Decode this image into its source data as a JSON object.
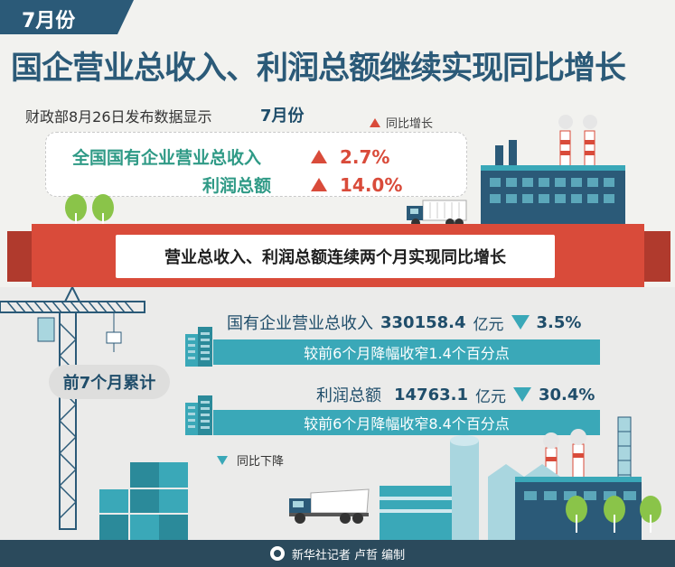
{
  "header": {
    "month_tab": "7月份",
    "title": "国企营业总收入、利润总额继续实现同比增长"
  },
  "summary": {
    "source_text": "财政部8月26日发布数据显示",
    "month": "7月份",
    "legend_up_label": "同比增长",
    "items": [
      {
        "label": "全国国有企业营业总收入",
        "change": "2.7%"
      },
      {
        "label": "利润总额",
        "change": "14.0%"
      }
    ]
  },
  "banner": {
    "text": "营业总收入、利润总额连续两个月实现同比增长"
  },
  "cumulative": {
    "label": "前7个月累计",
    "metrics": [
      {
        "label": "国有企业营业总收入",
        "value": "330158.4",
        "unit": "亿元",
        "change": "3.5%",
        "note": "较前6个月降幅收窄1.4个百分点"
      },
      {
        "label": "利润总额",
        "value": "14763.1",
        "unit": "亿元",
        "change": "30.4%",
        "note": "较前6个月降幅收窄8.4个百分点"
      }
    ],
    "legend_down_label": "同比下降"
  },
  "footer": {
    "credit": "新华社记者 卢哲 编制"
  },
  "colors": {
    "navy": "#2b5a78",
    "red": "#d94b3a",
    "teal": "#3aa8b8",
    "green_text": "#2f9a86",
    "footer": "#2b4a5c"
  },
  "icons": [
    "up-triangle-icon",
    "down-triangle-icon",
    "factory-icon",
    "truck-icon",
    "tree-icon",
    "crane-icon",
    "building-icon",
    "container-icon",
    "xinhua-logo-icon"
  ]
}
